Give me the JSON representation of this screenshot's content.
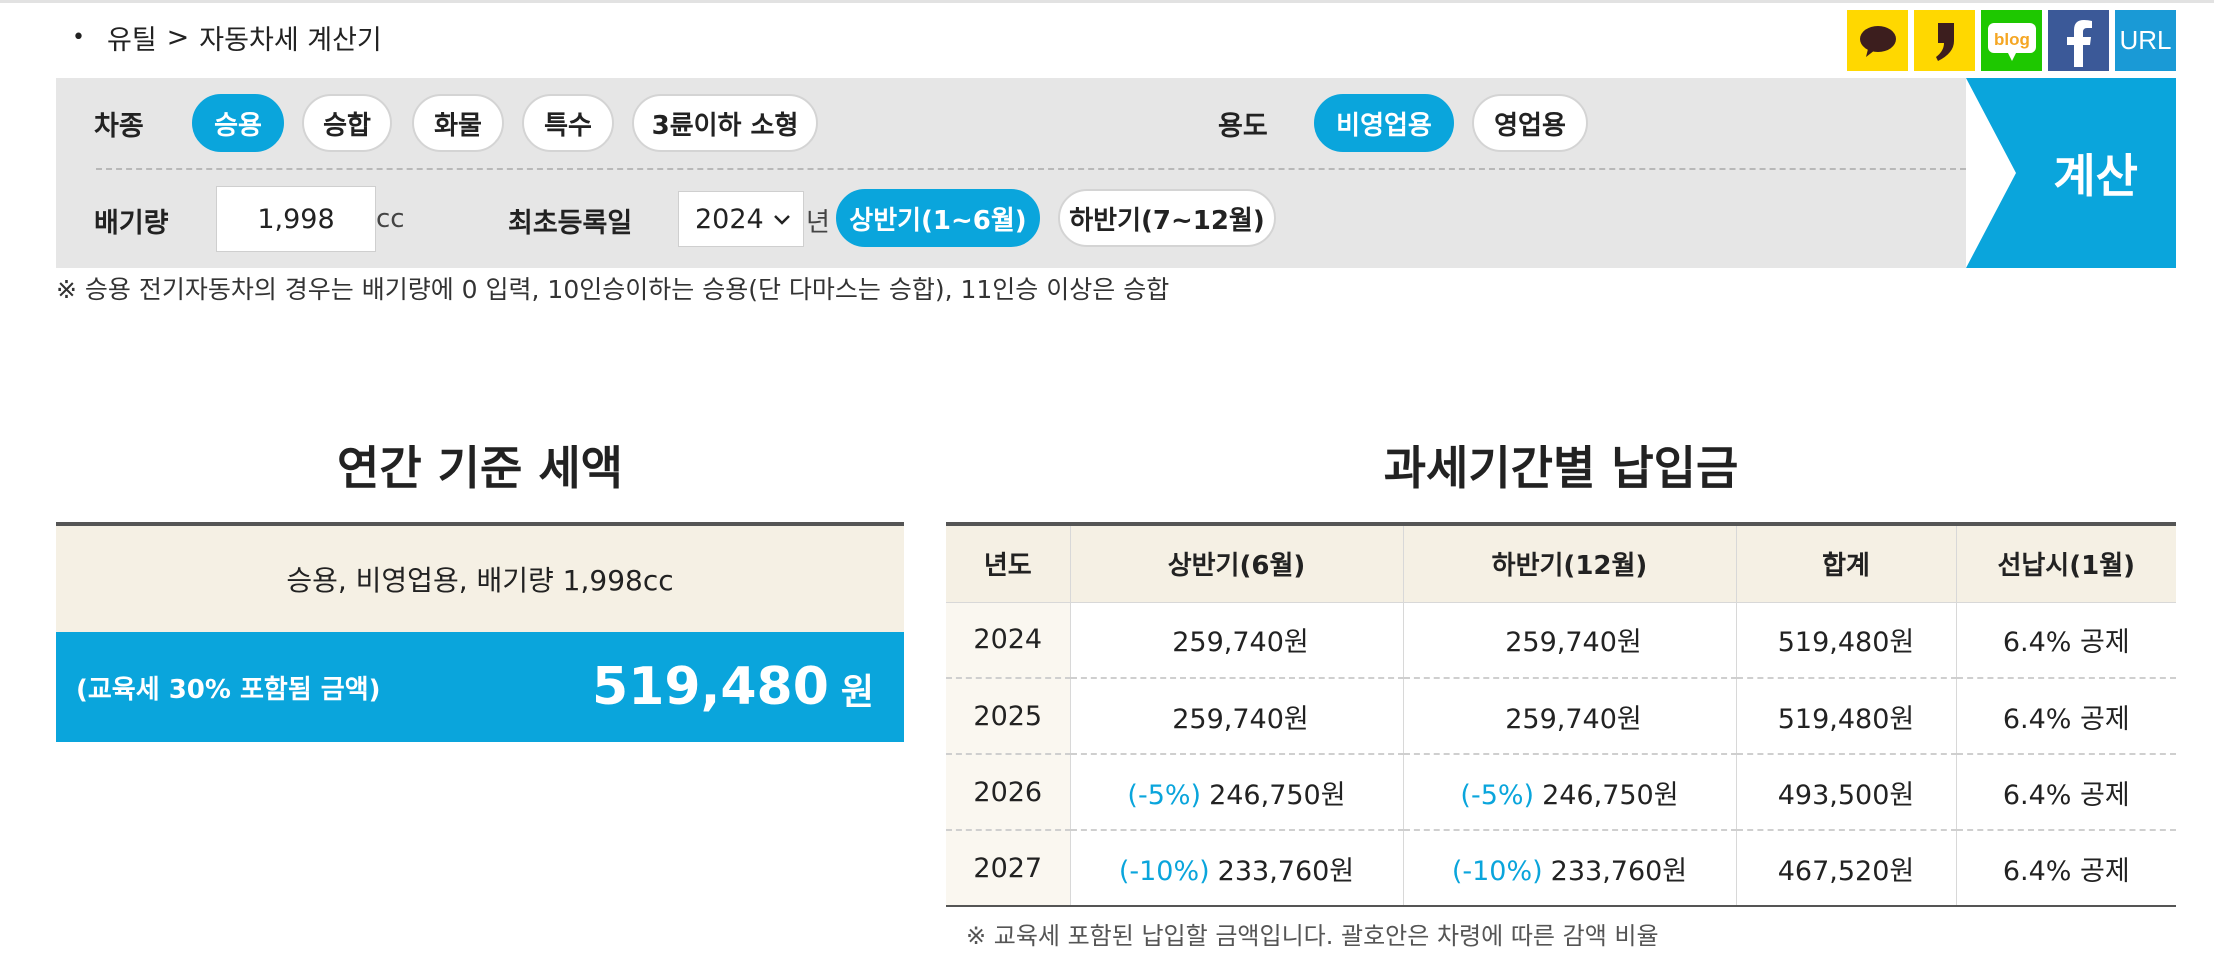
{
  "breadcrumb": {
    "bullet": "•",
    "home": "유틸",
    "separator": ">",
    "current": "자동차세 계산기"
  },
  "share": {
    "url_label": "URL",
    "blog_label": "blog"
  },
  "form": {
    "car_type_label": "차종",
    "car_types": [
      "승용",
      "승합",
      "화물",
      "특수",
      "3륜이하 소형"
    ],
    "car_type_selected": "승용",
    "usage_label": "용도",
    "usages": [
      "비영업용",
      "영업용"
    ],
    "usage_selected": "비영업용",
    "displacement_label": "배기량",
    "displacement_value": "1,998",
    "displacement_unit": "cc",
    "first_reg_label": "최초등록일",
    "year_value": "2024",
    "year_unit": "년",
    "halves": [
      "상반기(1~6월)",
      "하반기(7~12월)"
    ],
    "half_selected": "상반기(1~6월)",
    "calc_label": "계산"
  },
  "note_top": "※ 승용 전기자동차의 경우는 배기량에 0 입력, 10인승이하는 승용(단 다마스는 승합), 11인승 이상은 승합",
  "annual": {
    "title": "연간 기준 세액",
    "summary": "승용, 비영업용, 배기량 1,998cc",
    "sub_label": "(교육세 30% 포함됨 금액)",
    "amount": "519,480",
    "currency": "원"
  },
  "period": {
    "title": "과세기간별 납입금",
    "headers": [
      "년도",
      "상반기(6월)",
      "하반기(12월)",
      "합계",
      "선납시(1월)"
    ],
    "rows": [
      {
        "year": "2024",
        "h1_disc": "",
        "h1": "259,740원",
        "h2_disc": "",
        "h2": "259,740원",
        "total": "519,480원",
        "prepay": "6.4% 공제"
      },
      {
        "year": "2025",
        "h1_disc": "",
        "h1": "259,740원",
        "h2_disc": "",
        "h2": "259,740원",
        "total": "519,480원",
        "prepay": "6.4% 공제"
      },
      {
        "year": "2026",
        "h1_disc": "(-5%)",
        "h1": "246,750원",
        "h2_disc": "(-5%)",
        "h2": "246,750원",
        "total": "493,500원",
        "prepay": "6.4% 공제"
      },
      {
        "year": "2027",
        "h1_disc": "(-10%)",
        "h1": "233,760원",
        "h2_disc": "(-10%)",
        "h2": "233,760원",
        "total": "467,520원",
        "prepay": "6.4% 공제"
      }
    ]
  },
  "note_bottom": "※ 교육세 포함된 납입할 금액입니다. 괄호안은 차령에 따른 감액 비율",
  "colors": {
    "accent": "#0aa5dc",
    "panel": "#e6e6e6",
    "cream": "#f5f0e4"
  }
}
